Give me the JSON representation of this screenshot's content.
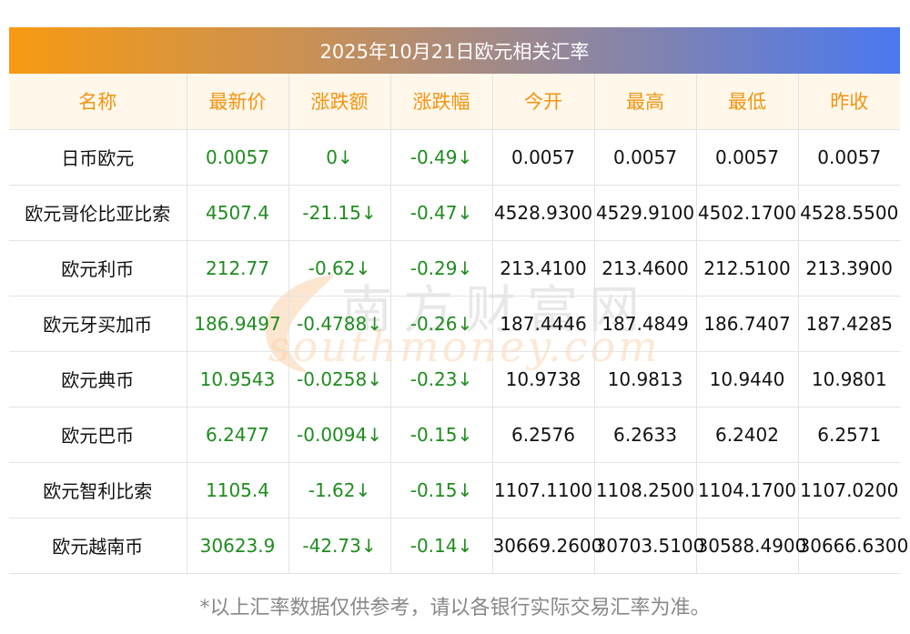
{
  "title": "2025年10月21日欧元相关汇率",
  "columns": [
    "名称",
    "最新价",
    "涨跌额",
    "涨跌幅",
    "今开",
    "最高",
    "最低",
    "昨收"
  ],
  "rows": [
    {
      "name": "日币欧元",
      "latest": "0.0057",
      "change": "0↓",
      "change_pct": "-0.49↓",
      "open": "0.0057",
      "high": "0.0057",
      "low": "0.0057",
      "prev_close": "0.0057"
    },
    {
      "name": "欧元哥伦比亚比索",
      "latest": "4507.4",
      "change": "-21.15↓",
      "change_pct": "-0.47↓",
      "open": "4528.9300",
      "high": "4529.9100",
      "low": "4502.1700",
      "prev_close": "4528.5500"
    },
    {
      "name": "欧元利币",
      "latest": "212.77",
      "change": "-0.62↓",
      "change_pct": "-0.29↓",
      "open": "213.4100",
      "high": "213.4600",
      "low": "212.5100",
      "prev_close": "213.3900"
    },
    {
      "name": "欧元牙买加币",
      "latest": "186.9497",
      "change": "-0.4788↓",
      "change_pct": "-0.26↓",
      "open": "187.4446",
      "high": "187.4849",
      "low": "186.7407",
      "prev_close": "187.4285"
    },
    {
      "name": "欧元典币",
      "latest": "10.9543",
      "change": "-0.0258↓",
      "change_pct": "-0.23↓",
      "open": "10.9738",
      "high": "10.9813",
      "low": "10.9440",
      "prev_close": "10.9801"
    },
    {
      "name": "欧元巴币",
      "latest": "6.2477",
      "change": "-0.0094↓",
      "change_pct": "-0.15↓",
      "open": "6.2576",
      "high": "6.2633",
      "low": "6.2402",
      "prev_close": "6.2571"
    },
    {
      "name": "欧元智利比索",
      "latest": "1105.4",
      "change": "-1.62↓",
      "change_pct": "-0.15↓",
      "open": "1107.1100",
      "high": "1108.2500",
      "low": "1104.1700",
      "prev_close": "1107.0200"
    },
    {
      "name": "欧元越南币",
      "latest": "30623.9",
      "change": "-42.73↓",
      "change_pct": "-0.14↓",
      "open": "30669.2600",
      "high": "30703.5100",
      "low": "30588.4900",
      "prev_close": "30666.6300"
    }
  ],
  "watermark": {
    "cn": "南方财富网",
    "en": "southmoney.com"
  },
  "footnote": "*以上汇率数据仅供参考，请以各银行实际交易汇率为准。",
  "colors": {
    "header_text": "#f29410",
    "header_bg": "#fff7ea",
    "positive_green": "#1f8c1f",
    "title_gradient_start": "#f79a12",
    "title_gradient_end": "#4a78f0"
  }
}
